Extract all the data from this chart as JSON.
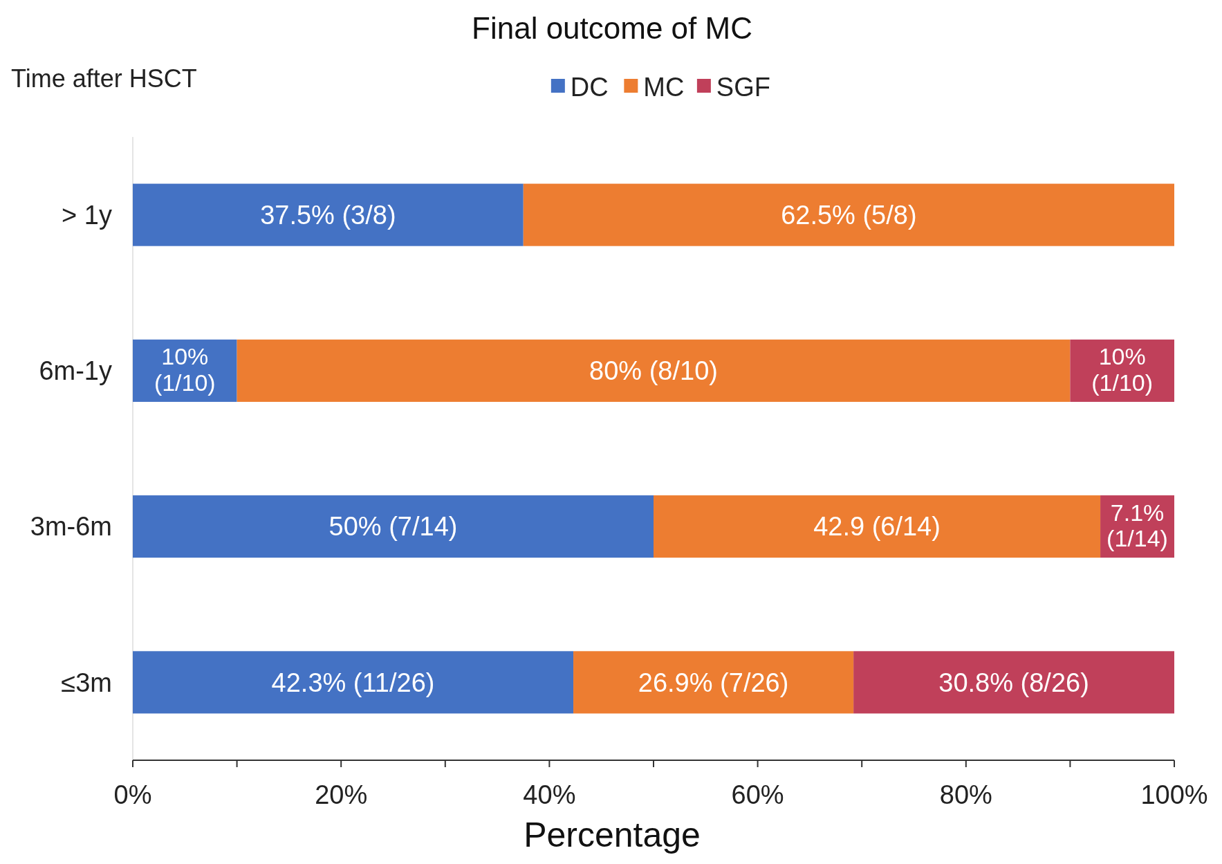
{
  "chart_data": {
    "type": "bar",
    "orientation": "horizontal",
    "stacked": true,
    "title": "Final outcome of MC",
    "ylabel": "Time after HSCT",
    "xlabel": "Percentage",
    "categories": [
      "> 1y",
      "6m-1y",
      "3m-6m",
      "≤3m"
    ],
    "series": [
      {
        "name": "DC",
        "color": "#4472c4",
        "values": [
          37.5,
          10,
          50,
          42.3
        ],
        "value_labels": [
          "37.5% (3/8)",
          "10% (1/10)",
          "50% (7/14)",
          "42.3% (11/26)"
        ]
      },
      {
        "name": "MC",
        "color": "#ed7d31",
        "values": [
          62.5,
          80,
          42.9,
          26.9
        ],
        "value_labels": [
          "62.5% (5/8)",
          "80% (8/10)",
          "42.9 (6/14)",
          "26.9% (7/26)"
        ]
      },
      {
        "name": "SGF",
        "color": "#c0405a",
        "values": [
          null,
          10,
          7.1,
          30.8
        ],
        "value_labels": [
          null,
          "10% (1/10)",
          "7.1% (1/14)",
          "30.8% (8/26)"
        ]
      }
    ],
    "xlim": [
      0,
      100
    ],
    "xticks": [
      {
        "value": 0,
        "label": "0%"
      },
      {
        "value": 10,
        "label": null
      },
      {
        "value": 20,
        "label": "20%"
      },
      {
        "value": 30,
        "label": null
      },
      {
        "value": 40,
        "label": "40%"
      },
      {
        "value": 50,
        "label": null
      },
      {
        "value": 60,
        "label": "60%"
      },
      {
        "value": 70,
        "label": null
      },
      {
        "value": 80,
        "label": "80%"
      },
      {
        "value": 90,
        "label": null
      },
      {
        "value": 100,
        "label": "100%"
      }
    ],
    "legend": "top",
    "grid": false
  }
}
